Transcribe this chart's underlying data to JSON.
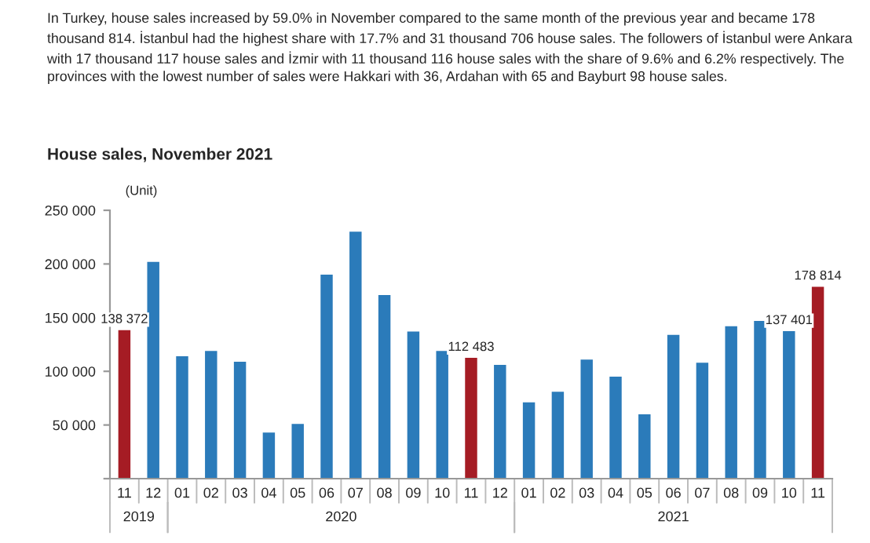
{
  "chart_data": {
    "type": "bar",
    "subtitle": "In Turkey, house sales increased by 59.0% in November compared to the same month of the previous year and became 178 thousand 814. İstanbul had the highest share with 17.7% and 31 thousand 706 house sales. The followers of İstanbul were Ankara with 17 thousand 117 house sales and İzmir with 11 thousand 116 house sales with the share of 9.6% and 6.2% respectively. The provinces with the lowest number of sales were Hakkari with 36, Ardahan with 65 and Bayburt 98 house sales.",
    "title": "House sales, November 2021",
    "ylabel": "(Unit)",
    "categories": [
      "11",
      "12",
      "01",
      "02",
      "03",
      "04",
      "05",
      "06",
      "07",
      "08",
      "09",
      "10",
      "11",
      "12",
      "01",
      "02",
      "03",
      "04",
      "05",
      "06",
      "07",
      "08",
      "09",
      "10",
      "11"
    ],
    "values": [
      138372,
      202000,
      114000,
      119000,
      109000,
      43000,
      51000,
      190000,
      230000,
      171000,
      137000,
      119000,
      112483,
      106000,
      71000,
      81000,
      111000,
      95000,
      60000,
      134000,
      108000,
      142000,
      147000,
      137401,
      178814
    ],
    "colors": [
      "#a51c24",
      "#2b7bba",
      "#2b7bba",
      "#2b7bba",
      "#2b7bba",
      "#2b7bba",
      "#2b7bba",
      "#2b7bba",
      "#2b7bba",
      "#2b7bba",
      "#2b7bba",
      "#2b7bba",
      "#a51c24",
      "#2b7bba",
      "#2b7bba",
      "#2b7bba",
      "#2b7bba",
      "#2b7bba",
      "#2b7bba",
      "#2b7bba",
      "#2b7bba",
      "#2b7bba",
      "#2b7bba",
      "#2b7bba",
      "#a51c24"
    ],
    "value_labels": [
      "138 372",
      null,
      null,
      null,
      null,
      null,
      null,
      null,
      null,
      null,
      null,
      null,
      "112 483",
      null,
      null,
      null,
      null,
      null,
      null,
      null,
      null,
      null,
      null,
      "137 401",
      "178 814"
    ],
    "annotations": [
      "2019",
      "2020",
      "2021"
    ],
    "ylim": [
      0,
      250000
    ],
    "yticks": [
      {
        "value": 0,
        "label": null
      },
      {
        "value": 50000,
        "label": "50 000"
      },
      {
        "value": 100000,
        "label": "100 000"
      },
      {
        "value": 150000,
        "label": "150 000"
      },
      {
        "value": 200000,
        "label": "200 000"
      },
      {
        "value": 250000,
        "label": "250 000"
      }
    ],
    "grid": false,
    "legend": false
  }
}
